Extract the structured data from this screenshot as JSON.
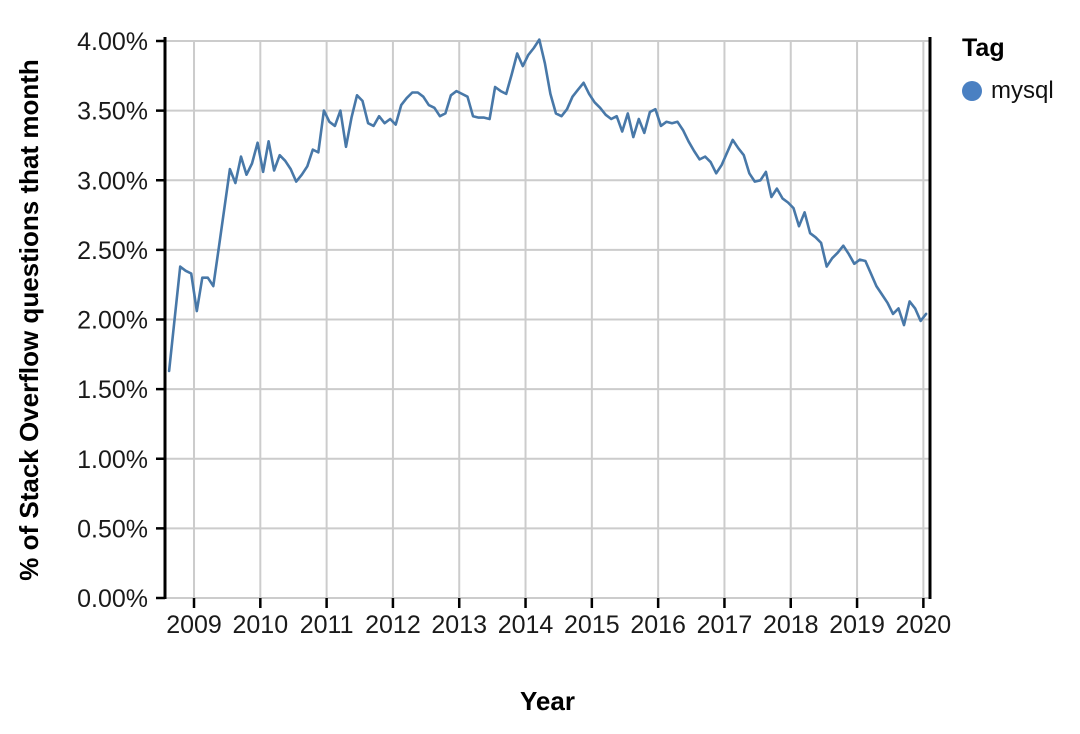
{
  "page": {
    "background": "#ffffff"
  },
  "chart": {
    "y_axis_title": "% of Stack Overflow questions that month",
    "x_axis_title": "Year",
    "legend_title": "Tag",
    "legend_items": [
      {
        "label": "mysql",
        "color": "#4a80c2"
      }
    ]
  },
  "chart_data": {
    "type": "line",
    "title": "",
    "xlabel": "Year",
    "ylabel": "% of Stack Overflow questions that month",
    "x_tick_labels": [
      "2009",
      "2010",
      "2011",
      "2012",
      "2013",
      "2014",
      "2015",
      "2016",
      "2017",
      "2018",
      "2019",
      "2020"
    ],
    "y_tick_labels": [
      "0.00%",
      "0.50%",
      "1.00%",
      "1.50%",
      "2.00%",
      "2.50%",
      "3.00%",
      "3.50%",
      "4.00%"
    ],
    "y_tick_values": [
      0,
      0.5,
      1,
      1.5,
      2,
      2.5,
      3,
      3.5,
      4
    ],
    "ylim": [
      0,
      4
    ],
    "x_domain_years": [
      2008.5625,
      2020.1
    ],
    "grid": true,
    "legend_position": "top-right",
    "colors": {
      "grid": "#cccccc",
      "axis": "#000000",
      "tick_label": "#1a1a1a",
      "line": "#4878a8"
    },
    "series": [
      {
        "name": "mysql",
        "color": "#4878a8",
        "interval": "monthly",
        "start": "2008-08",
        "end": "2020-01",
        "unit": "percent of Stack Overflow questions",
        "values": [
          1.63,
          2.01,
          2.38,
          2.35,
          2.33,
          2.06,
          2.3,
          2.3,
          2.24,
          2.52,
          2.8,
          3.08,
          2.98,
          3.17,
          3.04,
          3.12,
          3.27,
          3.06,
          3.28,
          3.07,
          3.18,
          3.14,
          3.08,
          2.99,
          3.04,
          3.1,
          3.22,
          3.2,
          3.5,
          3.42,
          3.39,
          3.5,
          3.24,
          3.45,
          3.61,
          3.57,
          3.41,
          3.39,
          3.46,
          3.41,
          3.44,
          3.4,
          3.54,
          3.59,
          3.63,
          3.63,
          3.6,
          3.54,
          3.52,
          3.46,
          3.48,
          3.61,
          3.64,
          3.62,
          3.6,
          3.46,
          3.45,
          3.45,
          3.44,
          3.67,
          3.64,
          3.62,
          3.76,
          3.91,
          3.82,
          3.9,
          3.95,
          4.01,
          3.84,
          3.62,
          3.48,
          3.46,
          3.51,
          3.6,
          3.65,
          3.7,
          3.62,
          3.56,
          3.52,
          3.47,
          3.44,
          3.46,
          3.35,
          3.48,
          3.31,
          3.44,
          3.34,
          3.49,
          3.51,
          3.39,
          3.42,
          3.41,
          3.42,
          3.36,
          3.28,
          3.21,
          3.15,
          3.17,
          3.13,
          3.05,
          3.11,
          3.2,
          3.29,
          3.23,
          3.18,
          3.05,
          2.99,
          3.0,
          3.06,
          2.88,
          2.94,
          2.87,
          2.84,
          2.8,
          2.67,
          2.77,
          2.62,
          2.59,
          2.55,
          2.38,
          2.44,
          2.48,
          2.53,
          2.47,
          2.4,
          2.43,
          2.42,
          2.33,
          2.24,
          2.18,
          2.12,
          2.04,
          2.08,
          1.96,
          2.13,
          2.08,
          1.99,
          2.04
        ]
      }
    ]
  }
}
